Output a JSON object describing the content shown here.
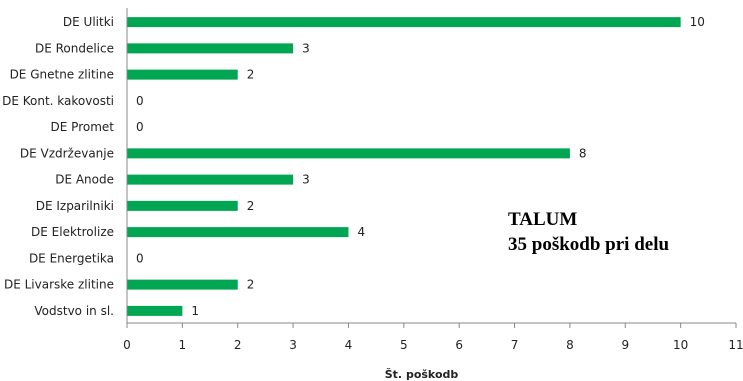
{
  "chart_data": {
    "type": "bar",
    "orientation": "horizontal",
    "categories": [
      "DE Ulitki",
      "DE Rondelice",
      "DE Gnetne zlitine",
      "DE Kont. kakovosti",
      "DE Promet",
      "DE Vzdrževanje",
      "DE Anode",
      "DE Izparilniki",
      "DE Elektrolize",
      "DE Energetika",
      "DE Livarske zlitine",
      "Vodstvo in sl."
    ],
    "values": [
      10,
      3,
      2,
      0,
      0,
      8,
      3,
      2,
      4,
      0,
      2,
      1
    ],
    "xlabel": "Št. poškodb",
    "ylabel": "",
    "xlim": [
      0,
      11
    ],
    "xticks": [
      "0",
      "1",
      "2",
      "3",
      "4",
      "5",
      "6",
      "7",
      "8",
      "9",
      "10",
      "11"
    ],
    "bar_color": "#00a651",
    "grid": false,
    "data_labels": true,
    "annotation": {
      "line1": "TALUM",
      "line2": "35 poškodb pri delu"
    }
  }
}
